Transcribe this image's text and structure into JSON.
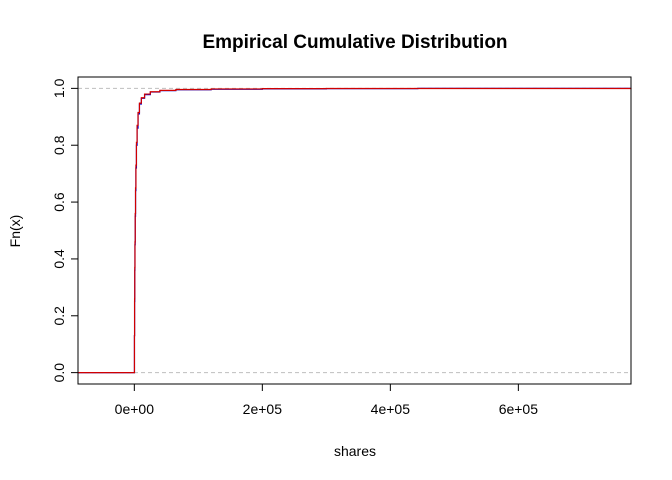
{
  "chart_data": {
    "type": "line",
    "title": "Empirical Cumulative Distribution",
    "xlabel": "shares",
    "ylabel": "Fn(x)",
    "xlim": [
      -88000,
      776000
    ],
    "ylim": [
      -0.04,
      1.04
    ],
    "x_ticks": [
      0,
      200000,
      400000,
      600000
    ],
    "x_tick_labels": [
      "0e+00",
      "2e+05",
      "4e+05",
      "6e+05"
    ],
    "y_ticks": [
      0.0,
      0.2,
      0.4,
      0.6,
      0.8,
      1.0
    ],
    "y_tick_labels": [
      "0.0",
      "0.2",
      "0.4",
      "0.6",
      "0.8",
      "1.0"
    ],
    "reference_lines_y": [
      0,
      1
    ],
    "grid": false,
    "colors": {
      "series_a": "#0000cd",
      "series_b": "#d00000",
      "reference": "#bebebe",
      "axis": "#000000"
    },
    "series": [
      {
        "color_key": "series_a",
        "x_max": 443000,
        "points": [
          [
            -88000,
            0
          ],
          [
            0,
            0
          ],
          [
            200,
            0.13
          ],
          [
            400,
            0.25
          ],
          [
            700,
            0.36
          ],
          [
            1000,
            0.45
          ],
          [
            1400,
            0.55
          ],
          [
            1900,
            0.64
          ],
          [
            2500,
            0.72
          ],
          [
            3300,
            0.8
          ],
          [
            4300,
            0.86
          ],
          [
            5800,
            0.91
          ],
          [
            8000,
            0.945
          ],
          [
            11000,
            0.965
          ],
          [
            16000,
            0.978
          ],
          [
            25000,
            0.987
          ],
          [
            40000,
            0.992
          ],
          [
            65000,
            0.995
          ],
          [
            120000,
            0.997
          ],
          [
            200000,
            0.998
          ],
          [
            300000,
            0.999
          ],
          [
            443000,
            1.0
          ],
          [
            776000,
            1.0
          ]
        ]
      },
      {
        "color_key": "series_b",
        "x_max": 776000,
        "points": [
          [
            -88000,
            0
          ],
          [
            0,
            0
          ],
          [
            200,
            0.13
          ],
          [
            400,
            0.26
          ],
          [
            700,
            0.37
          ],
          [
            1000,
            0.46
          ],
          [
            1400,
            0.56
          ],
          [
            1900,
            0.65
          ],
          [
            2500,
            0.73
          ],
          [
            3300,
            0.81
          ],
          [
            4300,
            0.87
          ],
          [
            5800,
            0.915
          ],
          [
            8000,
            0.948
          ],
          [
            11000,
            0.967
          ],
          [
            16000,
            0.98
          ],
          [
            25000,
            0.988
          ],
          [
            40000,
            0.993
          ],
          [
            65000,
            0.996
          ],
          [
            120000,
            0.998
          ],
          [
            200000,
            0.999
          ],
          [
            300000,
            0.9995
          ],
          [
            776000,
            1.0
          ]
        ]
      }
    ]
  }
}
